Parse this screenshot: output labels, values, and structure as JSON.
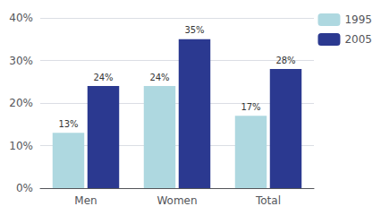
{
  "chart_data": {
    "type": "bar",
    "categories": [
      "Men",
      "Women",
      "Total"
    ],
    "series": [
      {
        "name": "1995",
        "color": "#aed8e0",
        "values": [
          13,
          24,
          17
        ],
        "value_labels": [
          "13%",
          "24%",
          "17%"
        ]
      },
      {
        "name": "2005",
        "color": "#2b3990",
        "values": [
          24,
          35,
          28
        ],
        "value_labels": [
          "24%",
          "35%",
          "28%"
        ]
      }
    ],
    "ylim": [
      0,
      40
    ],
    "yticks": [
      {
        "value": 0,
        "label": "0%"
      },
      {
        "value": 10,
        "label": "10%"
      },
      {
        "value": 20,
        "label": "20%"
      },
      {
        "value": 30,
        "label": "30%"
      },
      {
        "value": 40,
        "label": "40%"
      }
    ],
    "grid": true,
    "legend": "right",
    "data_labels": true
  }
}
